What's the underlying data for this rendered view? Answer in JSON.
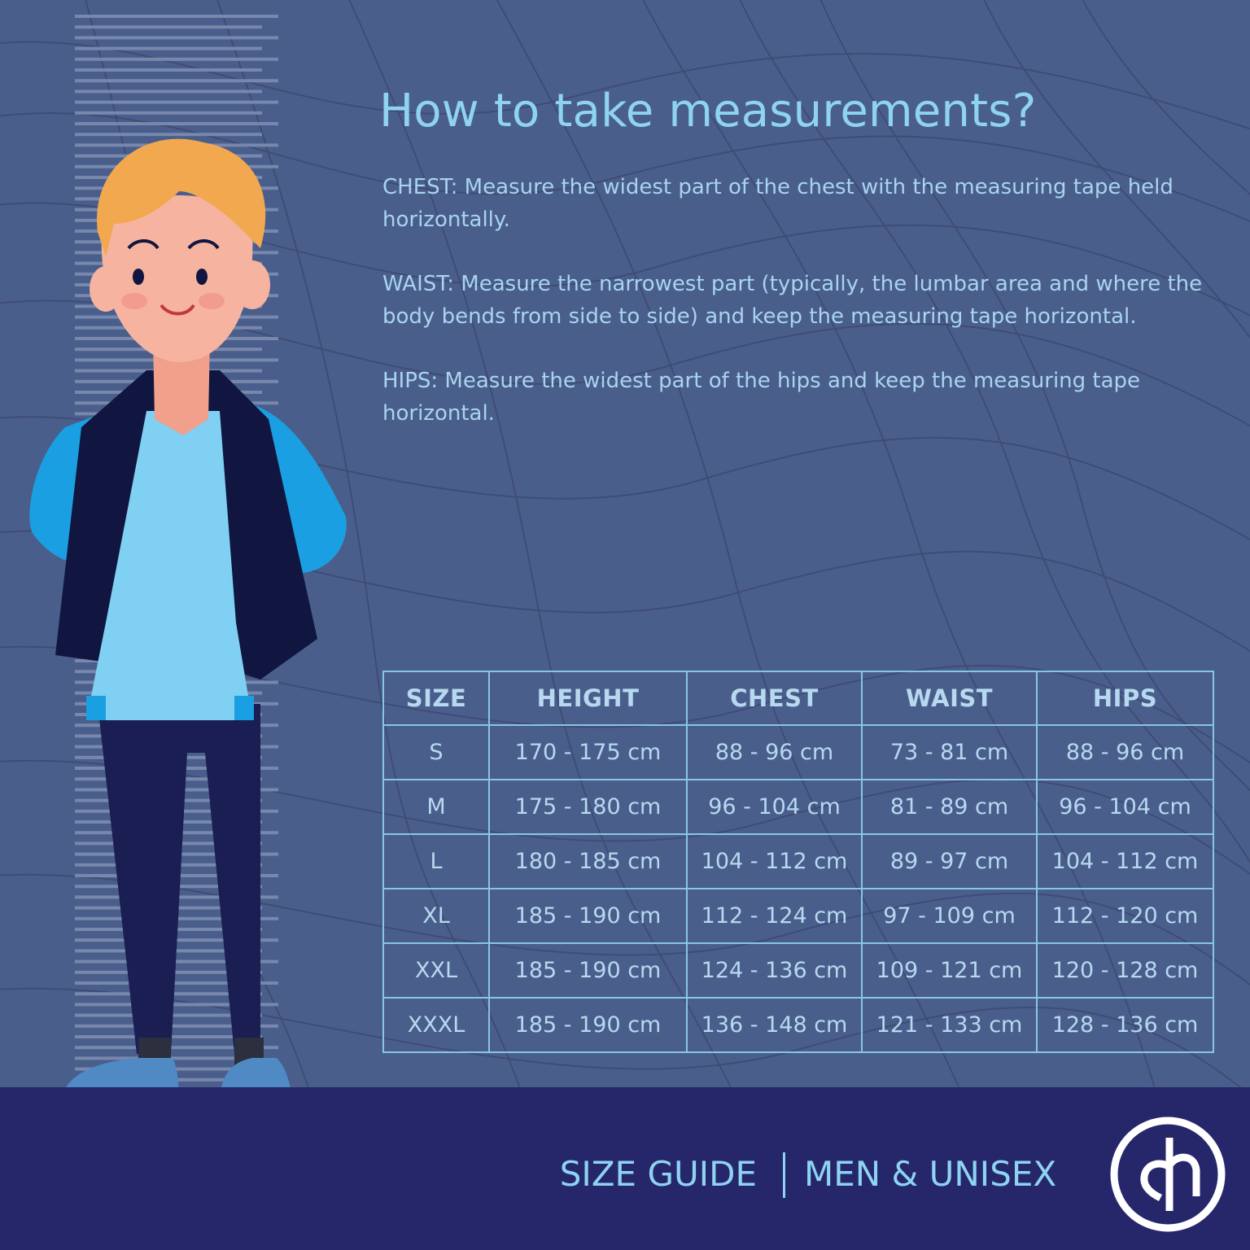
{
  "header": {
    "title": "How to take measurements?"
  },
  "instructions": {
    "chest": "CHEST: Measure the widest part of the chest with the measuring tape held horizontally.",
    "waist": "WAIST: Measure the narrowest part (typically, the lumbar area and where the body bends from side to side) and keep the measuring tape horizontal.",
    "hips": "HIPS: Measure the widest part of the hips and keep the measuring tape horizontal."
  },
  "table": {
    "headers": [
      "SIZE",
      "HEIGHT",
      "CHEST",
      "WAIST",
      "HIPS"
    ],
    "rows": [
      [
        "S",
        "170 - 175 cm",
        "88 - 96 cm",
        "73 - 81 cm",
        "88 - 96 cm"
      ],
      [
        "M",
        "175 - 180 cm",
        "96 - 104 cm",
        "81 - 89 cm",
        "96 - 104 cm"
      ],
      [
        "L",
        "180 - 185 cm",
        "104 - 112 cm",
        "89 - 97 cm",
        "104 - 112 cm"
      ],
      [
        "XL",
        "185 - 190 cm",
        "112 - 124 cm",
        "97 - 109 cm",
        "112 - 120 cm"
      ],
      [
        "XXL",
        "185 - 190 cm",
        "124 - 136 cm",
        "109 - 121 cm",
        "120 - 128 cm"
      ],
      [
        "XXXL",
        "185 - 190 cm",
        "136 - 148 cm",
        "121 - 133 cm",
        "128 - 136 cm"
      ]
    ]
  },
  "footer": {
    "left": "SIZE GUIDE",
    "right": "MEN & UNISEX"
  },
  "icons": {
    "logo": "brand-logo-icon",
    "ruler": "height-ruler-icon",
    "illustration": "boy-illustration"
  },
  "colors": {
    "background": "#4a5e8c",
    "footer": "#26276a",
    "accent": "#8fd3f2",
    "text": "#a8d4ee",
    "table_border": "#88c6e6"
  }
}
